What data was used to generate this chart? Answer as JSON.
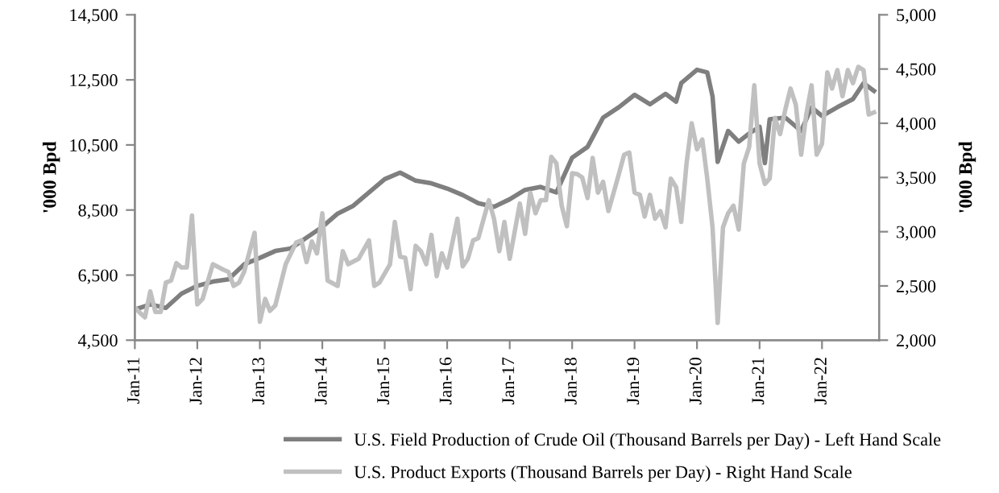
{
  "chart_data": {
    "type": "line",
    "ylabel": "'000 Bpd",
    "y2label": "'000 Bpd",
    "xlim": [
      "2011-01",
      "2022-12"
    ],
    "xticks": [
      {
        "value": "2011-01",
        "label": "Jan-11"
      },
      {
        "value": "2012-01",
        "label": "Jan-12"
      },
      {
        "value": "2013-01",
        "label": "Jan-13"
      },
      {
        "value": "2014-01",
        "label": "Jan-14"
      },
      {
        "value": "2015-01",
        "label": "Jan-15"
      },
      {
        "value": "2016-01",
        "label": "Jan-16"
      },
      {
        "value": "2017-01",
        "label": "Jan-17"
      },
      {
        "value": "2018-01",
        "label": "Jan-18"
      },
      {
        "value": "2019-01",
        "label": "Jan-19"
      },
      {
        "value": "2020-01",
        "label": "Jan-20"
      },
      {
        "value": "2021-01",
        "label": "Jan-21"
      },
      {
        "value": "2022-01",
        "label": "Jan-22"
      }
    ],
    "ylim": [
      4500,
      14500
    ],
    "yticks": [
      {
        "value": 4500,
        "label": "4,500"
      },
      {
        "value": 6500,
        "label": "6,500"
      },
      {
        "value": 8500,
        "label": "8,500"
      },
      {
        "value": 10500,
        "label": "10,500"
      },
      {
        "value": 12500,
        "label": "12,500"
      },
      {
        "value": 14500,
        "label": "14,500"
      }
    ],
    "y2lim": [
      2000,
      5000
    ],
    "y2ticks": [
      {
        "value": 2000,
        "label": "2,000"
      },
      {
        "value": 2500,
        "label": "2,500"
      },
      {
        "value": 3000,
        "label": "3,000"
      },
      {
        "value": 3500,
        "label": "3,500"
      },
      {
        "value": 4000,
        "label": "4,000"
      },
      {
        "value": 4500,
        "label": "4,500"
      },
      {
        "value": 5000,
        "label": "5,000"
      }
    ],
    "grid": false,
    "legend": "bottom",
    "marker": "none",
    "line_style": "solid",
    "series": [
      {
        "name": "U.S. Field Production of Crude Oil (Thousand Barrels per Day) - Left Hand Scale",
        "color": "#7f7f7f",
        "axis": "y",
        "x": [
          "2011-01",
          "2011-04",
          "2011-07",
          "2011-10",
          "2012-01",
          "2012-04",
          "2012-07",
          "2012-10",
          "2013-01",
          "2013-04",
          "2013-07",
          "2013-10",
          "2014-01",
          "2014-04",
          "2014-07",
          "2014-10",
          "2015-01",
          "2015-04",
          "2015-07",
          "2015-10",
          "2016-01",
          "2016-04",
          "2016-07",
          "2016-10",
          "2017-01",
          "2017-04",
          "2017-07",
          "2017-10",
          "2018-01",
          "2018-04",
          "2018-07",
          "2018-10",
          "2019-01",
          "2019-04",
          "2019-07",
          "2019-09",
          "2019-10",
          "2020-01",
          "2020-03",
          "2020-04",
          "2020-05",
          "2020-07",
          "2020-09",
          "2020-11",
          "2021-01",
          "2021-02",
          "2021-03",
          "2021-06",
          "2021-09",
          "2021-11",
          "2022-01",
          "2022-04",
          "2022-07",
          "2022-09",
          "2022-11"
        ],
        "values": [
          5440,
          5600,
          5490,
          5930,
          6170,
          6300,
          6370,
          6830,
          7030,
          7240,
          7320,
          7650,
          7980,
          8390,
          8630,
          9040,
          9450,
          9650,
          9400,
          9320,
          9160,
          8960,
          8710,
          8600,
          8830,
          9120,
          9210,
          9040,
          10110,
          10440,
          11340,
          11660,
          12040,
          11750,
          12070,
          11830,
          12400,
          12810,
          12730,
          11990,
          9980,
          10930,
          10600,
          10850,
          11060,
          9940,
          11290,
          11340,
          10930,
          11660,
          11390,
          11660,
          11910,
          12400,
          12160
        ]
      },
      {
        "name": "U.S. Product Exports (Thousand Barrels per Day) - Right Hand Scale",
        "color": "#c0c0c0",
        "axis": "y2",
        "x": [
          "2011-01",
          "2011-02",
          "2011-03",
          "2011-04",
          "2011-05",
          "2011-06",
          "2011-07",
          "2011-08",
          "2011-09",
          "2011-10",
          "2011-11",
          "2011-12",
          "2012-01",
          "2012-02",
          "2012-04",
          "2012-06",
          "2012-07",
          "2012-08",
          "2012-09",
          "2012-10",
          "2012-12",
          "2013-01",
          "2013-02",
          "2013-03",
          "2013-04",
          "2013-06",
          "2013-08",
          "2013-09",
          "2013-10",
          "2013-11",
          "2013-12",
          "2014-01",
          "2014-02",
          "2014-04",
          "2014-05",
          "2014-06",
          "2014-08",
          "2014-10",
          "2014-11",
          "2014-12",
          "2015-02",
          "2015-03",
          "2015-04",
          "2015-05",
          "2015-06",
          "2015-07",
          "2015-08",
          "2015-09",
          "2015-10",
          "2015-11",
          "2015-12",
          "2016-01",
          "2016-03",
          "2016-04",
          "2016-05",
          "2016-06",
          "2016-07",
          "2016-09",
          "2016-10",
          "2016-11",
          "2016-12",
          "2017-01",
          "2017-03",
          "2017-04",
          "2017-05",
          "2017-06",
          "2017-07",
          "2017-08",
          "2017-09",
          "2017-10",
          "2017-11",
          "2017-12",
          "2018-01",
          "2018-02",
          "2018-03",
          "2018-04",
          "2018-05",
          "2018-06",
          "2018-07",
          "2018-08",
          "2018-10",
          "2018-11",
          "2018-12",
          "2019-01",
          "2019-02",
          "2019-03",
          "2019-04",
          "2019-05",
          "2019-06",
          "2019-07",
          "2019-08",
          "2019-09",
          "2019-10",
          "2019-11",
          "2019-12",
          "2020-01",
          "2020-02",
          "2020-03",
          "2020-04",
          "2020-05",
          "2020-06",
          "2020-07",
          "2020-08",
          "2020-09",
          "2020-10",
          "2020-11",
          "2020-12",
          "2021-01",
          "2021-02",
          "2021-03",
          "2021-04",
          "2021-05",
          "2021-06",
          "2021-07",
          "2021-08",
          "2021-09",
          "2021-10",
          "2021-11",
          "2021-12",
          "2022-01",
          "2022-02",
          "2022-03",
          "2022-04",
          "2022-05",
          "2022-06",
          "2022-07",
          "2022-08",
          "2022-09",
          "2022-10",
          "2022-11"
        ],
        "values": [
          2300,
          2250,
          2210,
          2450,
          2260,
          2260,
          2530,
          2550,
          2710,
          2670,
          2670,
          3150,
          2330,
          2380,
          2700,
          2650,
          2630,
          2500,
          2530,
          2630,
          2990,
          2170,
          2380,
          2270,
          2320,
          2700,
          2900,
          2920,
          2720,
          2910,
          2800,
          3170,
          2550,
          2500,
          2820,
          2700,
          2750,
          2920,
          2500,
          2530,
          2700,
          3090,
          2770,
          2760,
          2470,
          2870,
          2820,
          2700,
          2970,
          2590,
          2800,
          2670,
          3120,
          2680,
          2750,
          2920,
          2940,
          3290,
          3120,
          2820,
          3090,
          2750,
          3260,
          2980,
          3360,
          3170,
          3290,
          3290,
          3690,
          3630,
          3240,
          3050,
          3540,
          3530,
          3500,
          3310,
          3680,
          3360,
          3460,
          3190,
          3530,
          3710,
          3730,
          3360,
          3340,
          3140,
          3340,
          3120,
          3190,
          3040,
          3490,
          3410,
          3090,
          3630,
          4000,
          3760,
          3850,
          3490,
          3040,
          2160,
          3040,
          3170,
          3240,
          3020,
          3630,
          3780,
          4350,
          3630,
          3440,
          3490,
          4050,
          3900,
          4130,
          4320,
          4170,
          3710,
          4080,
          4350,
          3710,
          3810,
          4470,
          4320,
          4490,
          4250,
          4490,
          4370,
          4520,
          4490,
          4080,
          4100
        ]
      }
    ]
  }
}
